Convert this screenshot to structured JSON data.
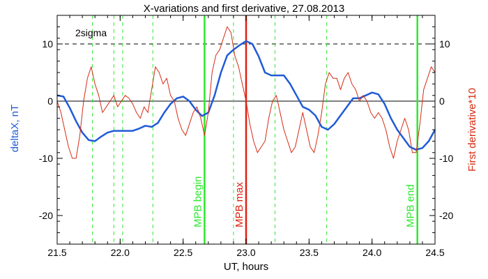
{
  "chart_data": {
    "type": "line",
    "title": "X-variations and first derivative, 27.08.2013",
    "xlabel": "UT, hours",
    "ylabel_left": "deltaX, nT",
    "ylabel_right": "First derivative*10",
    "xlim": [
      21.5,
      24.5
    ],
    "ylim_left": [
      -25,
      15
    ],
    "ylim_right": [
      -25,
      15
    ],
    "x_ticks": [
      21.5,
      22.0,
      22.5,
      23.0,
      23.5,
      24.0,
      24.5
    ],
    "x_tick_labels": [
      "21.5",
      "22.0",
      "22.5",
      "23.0",
      "23.5",
      "24.0",
      "24.5"
    ],
    "y_ticks": [
      10,
      0,
      -10,
      -20
    ],
    "y_tick_labels": [
      "10",
      "0",
      "-10",
      "-20"
    ],
    "annotation": "2sigma",
    "sigma_level": 10,
    "colors": {
      "deltaX": "#1f5bd6",
      "derivative": "#d62a12",
      "green": "#2ee82e",
      "red_line": "#e02010"
    },
    "vertical_lines": [
      {
        "x": 22.67,
        "label": "MPB begin",
        "style": "solid",
        "color": "green"
      },
      {
        "x": 23.0,
        "label": "MPB max",
        "style": "solid",
        "color": "red"
      },
      {
        "x": 24.36,
        "label": "MPB end",
        "style": "solid",
        "color": "green"
      },
      {
        "x": 21.78,
        "label": "",
        "style": "dashed",
        "color": "green"
      },
      {
        "x": 21.95,
        "label": "",
        "style": "dashed",
        "color": "green"
      },
      {
        "x": 22.02,
        "label": "",
        "style": "dashed",
        "color": "green"
      },
      {
        "x": 22.26,
        "label": "",
        "style": "dashed",
        "color": "green"
      },
      {
        "x": 22.9,
        "label": "",
        "style": "dashed",
        "color": "green"
      },
      {
        "x": 23.23,
        "label": "",
        "style": "dashed",
        "color": "green"
      },
      {
        "x": 23.64,
        "label": "",
        "style": "dashed",
        "color": "green"
      }
    ],
    "series": [
      {
        "axis": "left",
        "values_x": [
          21.5,
          21.55,
          21.6,
          21.65,
          21.7,
          21.75,
          21.8,
          21.85,
          21.9,
          21.95,
          22.0,
          22.05,
          22.1,
          22.15,
          22.2,
          22.25,
          22.3,
          22.35,
          22.4,
          22.45,
          22.5,
          22.55,
          22.6,
          22.65,
          22.7,
          22.75,
          22.8,
          22.85,
          22.9,
          22.95,
          23.0,
          23.05,
          23.1,
          23.15,
          23.2,
          23.25,
          23.3,
          23.35,
          23.4,
          23.45,
          23.5,
          23.55,
          23.6,
          23.65,
          23.7,
          23.75,
          23.8,
          23.85,
          23.9,
          23.95,
          24.0,
          24.05,
          24.1,
          24.15,
          24.2,
          24.25,
          24.3,
          24.35,
          24.4,
          24.45,
          24.5
        ],
        "values_y": [
          1.0,
          0.8,
          -1.2,
          -3.5,
          -5.5,
          -6.8,
          -7.0,
          -6.2,
          -5.5,
          -5.2,
          -5.2,
          -5.2,
          -5.2,
          -4.8,
          -4.3,
          -4.5,
          -3.8,
          -2.0,
          -0.5,
          0.5,
          0.8,
          0.0,
          -1.5,
          -2.6,
          -2.0,
          1.0,
          5.0,
          8.0,
          9.0,
          9.8,
          10.5,
          10.0,
          7.8,
          5.0,
          4.5,
          4.5,
          4.5,
          3.0,
          1.0,
          -1.0,
          -1.5,
          -2.5,
          -4.5,
          -5.0,
          -4.0,
          -2.5,
          -1.0,
          0.5,
          0.5,
          1.0,
          1.5,
          1.2,
          -0.5,
          -3.0,
          -5.0,
          -6.5,
          -8.0,
          -8.5,
          -8.2,
          -7.0,
          -5.0
        ]
      },
      {
        "axis": "right",
        "values_x": [
          21.5,
          21.53,
          21.56,
          21.59,
          21.62,
          21.65,
          21.68,
          21.71,
          21.74,
          21.77,
          21.8,
          21.83,
          21.86,
          21.89,
          21.92,
          21.95,
          21.98,
          22.01,
          22.04,
          22.07,
          22.1,
          22.13,
          22.16,
          22.19,
          22.22,
          22.25,
          22.28,
          22.31,
          22.34,
          22.37,
          22.4,
          22.43,
          22.46,
          22.49,
          22.52,
          22.55,
          22.58,
          22.61,
          22.64,
          22.67,
          22.7,
          22.73,
          22.76,
          22.79,
          22.82,
          22.85,
          22.88,
          22.91,
          22.94,
          22.97,
          23.0,
          23.03,
          23.06,
          23.09,
          23.12,
          23.15,
          23.18,
          23.21,
          23.24,
          23.27,
          23.3,
          23.33,
          23.36,
          23.39,
          23.42,
          23.45,
          23.48,
          23.51,
          23.54,
          23.57,
          23.6,
          23.63,
          23.66,
          23.69,
          23.72,
          23.75,
          23.78,
          23.81,
          23.84,
          23.87,
          23.9,
          23.93,
          23.96,
          23.99,
          24.02,
          24.05,
          24.08,
          24.11,
          24.14,
          24.17,
          24.2,
          24.23,
          24.26,
          24.29,
          24.32,
          24.35,
          24.38,
          24.41,
          24.44,
          24.47,
          24.5
        ],
        "values_y": [
          0,
          -2,
          -5,
          -8,
          -10,
          -10,
          -6,
          0,
          4,
          6,
          3,
          1,
          -2,
          -1,
          0,
          1,
          -1,
          0,
          1,
          0.5,
          -0.5,
          -2,
          -3,
          -1,
          -2,
          2,
          6,
          5,
          3,
          4,
          1,
          0,
          -3,
          -5,
          -6,
          -4,
          -2,
          -1,
          -3,
          -6,
          -2,
          5,
          8,
          9,
          11,
          13,
          12,
          8,
          6,
          3,
          0,
          -4,
          -7,
          -9,
          -8,
          -7,
          -3,
          0,
          1,
          -2,
          -5,
          -7,
          -9,
          -8,
          -5,
          -2,
          -5,
          -8,
          -9,
          -6,
          -2,
          3,
          5,
          4,
          4,
          2,
          4,
          5,
          3,
          2,
          0,
          1,
          0,
          -2,
          -3,
          -2,
          -3,
          -5,
          -8,
          -10,
          -7,
          -5,
          -3,
          -5,
          -9,
          -9,
          -4,
          2,
          4,
          6,
          5
        ]
      }
    ]
  }
}
